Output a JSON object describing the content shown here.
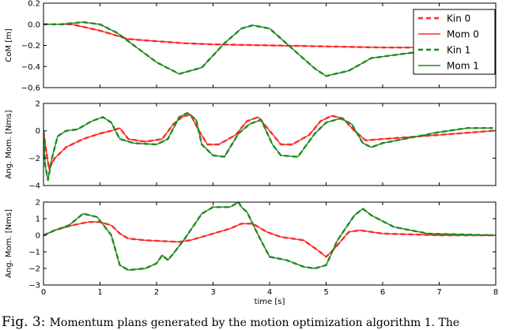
{
  "chart_data": [
    {
      "type": "line",
      "ylabel": "CoM [m]",
      "ylim": [
        -0.6,
        0.2
      ],
      "yticks": [
        "0.2",
        "0.0",
        "−0.2",
        "−0.4",
        "−0.6"
      ],
      "yticks_values": [
        0.2,
        0.0,
        -0.2,
        -0.4,
        -0.6
      ],
      "xlim": [
        0,
        8
      ],
      "legend_position": "top-right",
      "legend": [
        "Kin 0",
        "Mom 0",
        "Kin 1",
        "Mom 1"
      ],
      "series": [
        {
          "name": "Kin 0",
          "color": "#ff2a2a",
          "style": "dashed",
          "x": [
            0,
            0.5,
            1.0,
            1.5,
            2.0,
            2.5,
            3.0,
            4.0,
            5.0,
            6.0,
            7.0,
            7.75
          ],
          "y": [
            0,
            0.0,
            -0.06,
            -0.14,
            -0.16,
            -0.18,
            -0.19,
            -0.2,
            -0.21,
            -0.22,
            -0.22,
            -0.22
          ]
        },
        {
          "name": "Mom 0",
          "color": "#ff2a2a",
          "style": "solid",
          "x": [
            0,
            0.5,
            1.0,
            1.5,
            2.0,
            2.5,
            3.0,
            4.0,
            5.0,
            6.0,
            7.0,
            7.75
          ],
          "y": [
            0,
            0.0,
            -0.06,
            -0.14,
            -0.16,
            -0.18,
            -0.19,
            -0.2,
            -0.21,
            -0.22,
            -0.22,
            -0.22
          ]
        },
        {
          "name": "Kin 1",
          "color": "#1f8a1f",
          "style": "dashed",
          "x": [
            0,
            0.3,
            0.7,
            1.0,
            1.3,
            1.7,
            2.0,
            2.4,
            2.8,
            3.2,
            3.5,
            3.7,
            4.0,
            4.4,
            4.8,
            5.0,
            5.4,
            5.8,
            6.5,
            7.0,
            7.75
          ],
          "y": [
            0,
            0.0,
            0.02,
            0.0,
            -0.08,
            -0.24,
            -0.36,
            -0.47,
            -0.41,
            -0.18,
            -0.04,
            -0.01,
            -0.04,
            -0.23,
            -0.42,
            -0.49,
            -0.44,
            -0.32,
            -0.27,
            -0.26,
            -0.25
          ]
        },
        {
          "name": "Mom 1",
          "color": "#1f8a1f",
          "style": "solid",
          "x": [
            0,
            0.3,
            0.7,
            1.0,
            1.3,
            1.7,
            2.0,
            2.4,
            2.8,
            3.2,
            3.5,
            3.7,
            4.0,
            4.4,
            4.8,
            5.0,
            5.4,
            5.8,
            6.5,
            7.0,
            7.75
          ],
          "y": [
            0,
            0.0,
            0.02,
            0.0,
            -0.08,
            -0.24,
            -0.36,
            -0.47,
            -0.41,
            -0.18,
            -0.04,
            -0.01,
            -0.04,
            -0.23,
            -0.42,
            -0.49,
            -0.44,
            -0.32,
            -0.27,
            -0.26,
            -0.25
          ]
        }
      ]
    },
    {
      "type": "line",
      "ylabel": "Ang. Mom. [Nms]",
      "ylim": [
        -4,
        2
      ],
      "yticks": [
        "2",
        "0",
        "−2",
        "−4"
      ],
      "yticks_values": [
        2,
        0,
        -2,
        -4
      ],
      "xlim": [
        0,
        8
      ],
      "series": [
        {
          "name": "Kin 0",
          "color": "#ff2a2a",
          "style": "dashed",
          "x": [
            0,
            0.05,
            0.1,
            0.2,
            0.4,
            0.7,
            1.0,
            1.2,
            1.35,
            1.5,
            1.8,
            2.1,
            2.3,
            2.45,
            2.6,
            2.75,
            2.9,
            3.1,
            3.4,
            3.6,
            3.8,
            4.0,
            4.2,
            4.4,
            4.7,
            4.9,
            5.1,
            5.3,
            5.5,
            5.7,
            6.0,
            7.0,
            7.95
          ],
          "y": [
            0,
            -1.5,
            -2.8,
            -2.0,
            -1.2,
            -0.6,
            -0.2,
            0.0,
            0.2,
            -0.6,
            -0.8,
            -0.6,
            0.5,
            1.0,
            1.2,
            0.0,
            -1.0,
            -1.0,
            -0.3,
            0.7,
            1.0,
            0.0,
            -1.0,
            -1.0,
            -0.3,
            0.7,
            1.1,
            0.9,
            0.0,
            -0.7,
            -0.6,
            -0.3,
            0.0
          ]
        },
        {
          "name": "Mom 0",
          "color": "#ff2a2a",
          "style": "solid",
          "x": [
            0,
            0.05,
            0.1,
            0.2,
            0.4,
            0.7,
            1.0,
            1.2,
            1.35,
            1.5,
            1.8,
            2.1,
            2.3,
            2.45,
            2.6,
            2.75,
            2.9,
            3.1,
            3.4,
            3.6,
            3.8,
            4.0,
            4.2,
            4.4,
            4.7,
            4.9,
            5.1,
            5.3,
            5.5,
            5.7,
            6.0,
            7.0,
            7.95
          ],
          "y": [
            0,
            -1.5,
            -2.8,
            -2.0,
            -1.2,
            -0.6,
            -0.2,
            0.0,
            0.2,
            -0.6,
            -0.8,
            -0.6,
            0.5,
            1.0,
            1.2,
            0.0,
            -1.0,
            -1.0,
            -0.3,
            0.7,
            1.0,
            0.0,
            -1.0,
            -1.0,
            -0.3,
            0.7,
            1.1,
            0.9,
            0.0,
            -0.7,
            -0.6,
            -0.3,
            0.0
          ]
        },
        {
          "name": "Kin 1",
          "color": "#1f8a1f",
          "style": "dashed",
          "x": [
            0,
            0.03,
            0.08,
            0.15,
            0.25,
            0.4,
            0.6,
            0.85,
            1.05,
            1.2,
            1.35,
            1.6,
            2.0,
            2.2,
            2.4,
            2.55,
            2.7,
            2.8,
            3.0,
            3.2,
            3.45,
            3.65,
            3.85,
            4.05,
            4.2,
            4.5,
            4.8,
            5.0,
            5.25,
            5.45,
            5.65,
            5.8,
            6.0,
            6.5,
            7.0,
            7.5,
            7.95
          ],
          "y": [
            0,
            -2.5,
            -3.6,
            -2.0,
            -0.4,
            0.0,
            0.1,
            0.7,
            1.0,
            0.6,
            -0.6,
            -0.9,
            -1.0,
            -0.6,
            1.0,
            1.3,
            0.8,
            -1.0,
            -1.8,
            -1.9,
            -0.2,
            0.5,
            0.8,
            -1.0,
            -1.8,
            -1.9,
            -0.2,
            0.6,
            0.9,
            0.5,
            -0.9,
            -1.2,
            -0.9,
            -0.5,
            -0.1,
            0.2,
            0.2
          ]
        },
        {
          "name": "Mom 1",
          "color": "#1f8a1f",
          "style": "solid",
          "x": [
            0,
            0.03,
            0.08,
            0.15,
            0.25,
            0.4,
            0.6,
            0.85,
            1.05,
            1.2,
            1.35,
            1.6,
            2.0,
            2.2,
            2.4,
            2.55,
            2.7,
            2.8,
            3.0,
            3.2,
            3.45,
            3.65,
            3.85,
            4.05,
            4.2,
            4.5,
            4.8,
            5.0,
            5.25,
            5.45,
            5.65,
            5.8,
            6.0,
            6.5,
            7.0,
            7.5,
            7.95
          ],
          "y": [
            0,
            -2.5,
            -3.6,
            -2.0,
            -0.4,
            0.0,
            0.1,
            0.7,
            1.0,
            0.6,
            -0.6,
            -0.9,
            -1.0,
            -0.6,
            1.0,
            1.3,
            0.8,
            -1.0,
            -1.8,
            -1.9,
            -0.2,
            0.5,
            0.8,
            -1.0,
            -1.8,
            -1.9,
            -0.2,
            0.6,
            0.9,
            0.5,
            -0.9,
            -1.2,
            -0.9,
            -0.5,
            -0.1,
            0.2,
            0.2
          ]
        }
      ]
    },
    {
      "type": "line",
      "ylabel": "Ang. Mom. [Nms]",
      "xlabel": "time [s]",
      "ylim": [
        -3,
        2
      ],
      "yticks": [
        "2",
        "1",
        "0",
        "−1",
        "−2",
        "−3"
      ],
      "yticks_values": [
        2,
        1,
        0,
        -1,
        -2,
        -3
      ],
      "xlim": [
        0,
        8
      ],
      "xticks": [
        "0",
        "1",
        "2",
        "3",
        "4",
        "5",
        "6",
        "7",
        "8"
      ],
      "xticks_values": [
        0,
        1,
        2,
        3,
        4,
        5,
        6,
        7,
        8
      ],
      "series": [
        {
          "name": "Kin 0",
          "color": "#ff2a2a",
          "style": "dashed",
          "x": [
            0,
            0.2,
            0.5,
            0.8,
            1.0,
            1.2,
            1.35,
            1.5,
            1.8,
            2.1,
            2.4,
            2.6,
            2.8,
            3.0,
            3.3,
            3.5,
            3.7,
            3.95,
            4.2,
            4.6,
            4.85,
            5.0,
            5.15,
            5.4,
            5.6,
            6.0,
            6.5,
            7.0,
            7.95
          ],
          "y": [
            0,
            0.3,
            0.6,
            0.8,
            0.8,
            0.6,
            0.1,
            -0.2,
            -0.3,
            -0.35,
            -0.4,
            -0.3,
            -0.1,
            0.1,
            0.4,
            0.7,
            0.7,
            0.2,
            -0.1,
            -0.3,
            -0.9,
            -1.3,
            -0.8,
            0.2,
            0.3,
            0.1,
            0.05,
            0.0,
            0.0
          ]
        },
        {
          "name": "Mom 0",
          "color": "#ff2a2a",
          "style": "solid",
          "x": [
            0,
            0.2,
            0.5,
            0.8,
            1.0,
            1.2,
            1.35,
            1.5,
            1.8,
            2.1,
            2.4,
            2.6,
            2.8,
            3.0,
            3.3,
            3.5,
            3.7,
            3.95,
            4.2,
            4.6,
            4.85,
            5.0,
            5.15,
            5.4,
            5.6,
            6.0,
            6.5,
            7.0,
            7.95
          ],
          "y": [
            0,
            0.3,
            0.6,
            0.8,
            0.8,
            0.6,
            0.1,
            -0.2,
            -0.3,
            -0.35,
            -0.4,
            -0.3,
            -0.1,
            0.1,
            0.4,
            0.7,
            0.7,
            0.2,
            -0.1,
            -0.3,
            -0.9,
            -1.3,
            -0.8,
            0.2,
            0.3,
            0.1,
            0.05,
            0.0,
            0.0
          ]
        },
        {
          "name": "Kin 1",
          "color": "#1f8a1f",
          "style": "dashed",
          "x": [
            0,
            0.2,
            0.45,
            0.7,
            0.95,
            1.2,
            1.35,
            1.5,
            1.8,
            2.0,
            2.1,
            2.2,
            2.3,
            2.5,
            2.8,
            3.0,
            3.3,
            3.45,
            3.5,
            3.6,
            3.8,
            4.0,
            4.3,
            4.6,
            4.8,
            5.0,
            5.2,
            5.5,
            5.65,
            5.8,
            6.2,
            6.8,
            7.95
          ],
          "y": [
            0,
            0.3,
            0.6,
            1.3,
            1.1,
            0.0,
            -1.8,
            -2.1,
            -2.0,
            -1.7,
            -1.2,
            -1.5,
            -1.1,
            -0.2,
            1.3,
            1.7,
            1.7,
            2.0,
            1.7,
            1.4,
            0.0,
            -1.3,
            -1.5,
            -1.9,
            -2.0,
            -1.8,
            -0.3,
            1.2,
            1.6,
            1.2,
            0.5,
            0.1,
            0.0
          ]
        },
        {
          "name": "Mom 1",
          "color": "#1f8a1f",
          "style": "solid",
          "x": [
            0,
            0.2,
            0.45,
            0.7,
            0.95,
            1.2,
            1.35,
            1.5,
            1.8,
            2.0,
            2.1,
            2.2,
            2.3,
            2.5,
            2.8,
            3.0,
            3.3,
            3.45,
            3.5,
            3.6,
            3.8,
            4.0,
            4.3,
            4.6,
            4.8,
            5.0,
            5.2,
            5.5,
            5.65,
            5.8,
            6.2,
            6.8,
            7.95
          ],
          "y": [
            0,
            0.3,
            0.6,
            1.3,
            1.1,
            0.0,
            -1.8,
            -2.1,
            -2.0,
            -1.7,
            -1.2,
            -1.5,
            -1.1,
            -0.2,
            1.3,
            1.7,
            1.7,
            2.0,
            1.7,
            1.4,
            0.0,
            -1.3,
            -1.5,
            -1.9,
            -2.0,
            -1.8,
            -0.3,
            1.2,
            1.6,
            1.2,
            0.5,
            0.1,
            0.0
          ]
        }
      ]
    }
  ],
  "caption": {
    "label": "Fig. 3:",
    "text": "Momentum plans generated by the motion optimization algorithm 1. The"
  }
}
